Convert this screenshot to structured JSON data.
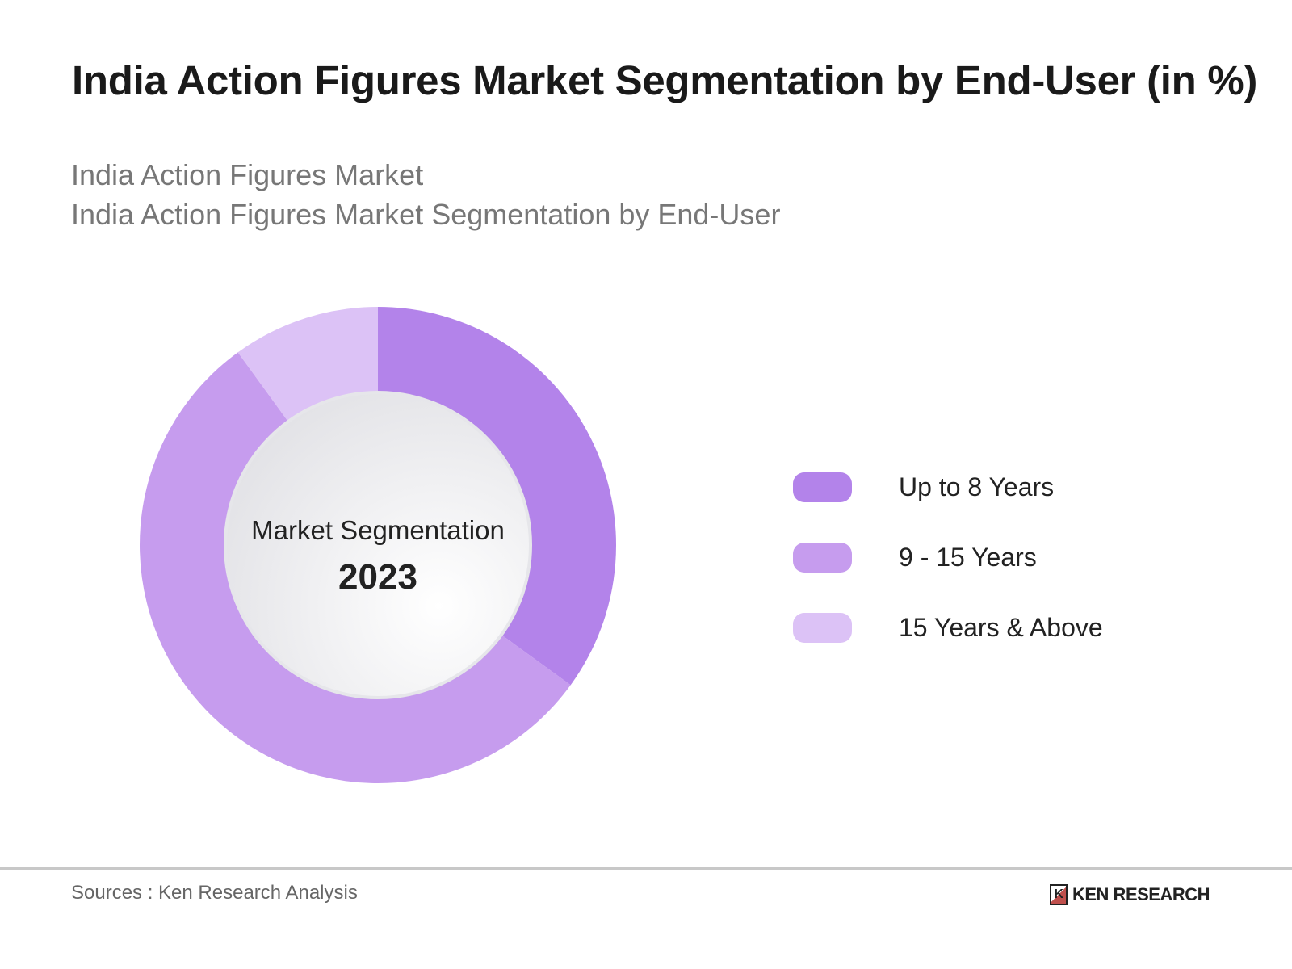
{
  "header": {
    "title": "India Action Figures Market Segmentation by End-User (in %)",
    "subtitle_1": "India Action Figures Market",
    "subtitle_2": "India Action Figures Market Segmentation by End-User"
  },
  "chart_data": {
    "type": "pie",
    "donut": true,
    "center_label": "Market Segmentation",
    "center_value": "2023",
    "categories": [
      "Up to 8 Years",
      "9 - 15 Years",
      "15 Years & Above"
    ],
    "values": [
      35,
      55,
      10
    ],
    "colors": [
      "#b383ea",
      "#c69cee",
      "#dcc2f6"
    ],
    "legend_position": "right"
  },
  "footer": {
    "source": "Sources : Ken Research Analysis",
    "logo_text": "KEN RESEARCH",
    "logo_mark": "K"
  }
}
